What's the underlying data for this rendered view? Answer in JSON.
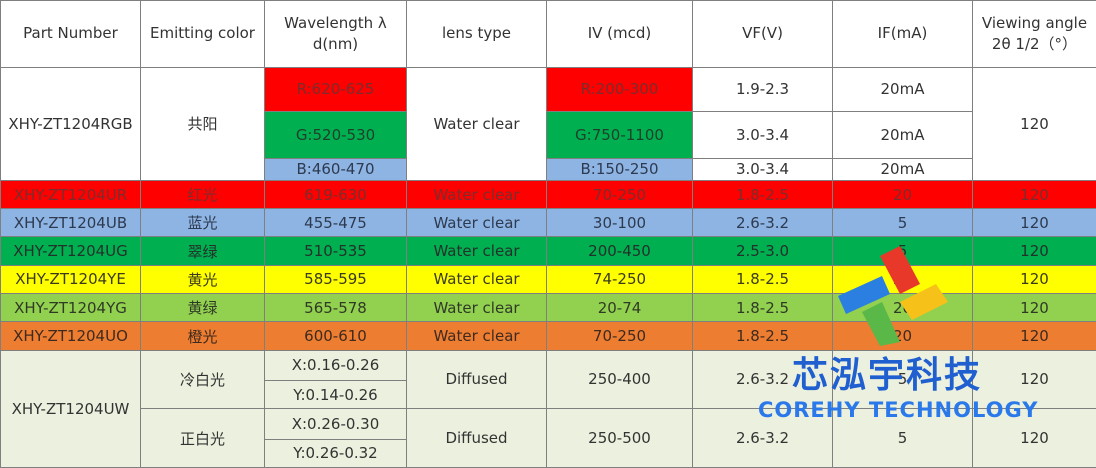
{
  "headers": {
    "part_number": "Part Number",
    "emitting_color": "Emitting color",
    "wavelength": "Wavelength λ d(nm)",
    "lens_type": "lens type",
    "iv": "IV (mcd)",
    "vf": "VF(V)",
    "if": "IF(mA)",
    "viewing_angle": "Viewing angle 2θ 1/2（°）"
  },
  "rgb": {
    "part": "XHY-ZT1204RGB",
    "color": "共阳",
    "lens": "Water clear",
    "angle": "120",
    "channels": [
      {
        "wavelength": "R:620-625",
        "iv": "R:200-300",
        "vf": "1.9-2.3",
        "if": "20mA"
      },
      {
        "wavelength": "G:520-530",
        "iv": "G:750-1100",
        "vf": "3.0-3.4",
        "if": "20mA"
      },
      {
        "wavelength": "B:460-470",
        "iv": "B:150-250",
        "vf": "3.0-3.4",
        "if": "20mA"
      }
    ]
  },
  "mono": [
    {
      "part": "XHY-ZT1204UR",
      "color": "红光",
      "wavelength": "619-630",
      "lens": "Water clear",
      "iv": "70-250",
      "vf": "1.8-2.5",
      "if": "20",
      "angle": "120"
    },
    {
      "part": "XHY-ZT1204UB",
      "color": "蓝光",
      "wavelength": "455-475",
      "lens": "Water clear",
      "iv": "30-100",
      "vf": "2.6-3.2",
      "if": "5",
      "angle": "120"
    },
    {
      "part": "XHY-ZT1204UG",
      "color": "翠绿",
      "wavelength": "510-535",
      "lens": "Water clear",
      "iv": "200-450",
      "vf": "2.5-3.0",
      "if": "5",
      "angle": "120"
    },
    {
      "part": "XHY-ZT1204YE",
      "color": "黄光",
      "wavelength": "585-595",
      "lens": "Water clear",
      "iv": "74-250",
      "vf": "1.8-2.5",
      "if": "20",
      "angle": "120"
    },
    {
      "part": "XHY-ZT1204YG",
      "color": "黄绿",
      "wavelength": "565-578",
      "lens": "Water clear",
      "iv": "20-74",
      "vf": "1.8-2.5",
      "if": "20",
      "angle": "120"
    },
    {
      "part": "XHY-ZT1204UO",
      "color": "橙光",
      "wavelength": "600-610",
      "lens": "Water clear",
      "iv": "70-250",
      "vf": "1.8-2.5",
      "if": "20",
      "angle": "120"
    }
  ],
  "uw": {
    "part": "XHY-ZT1204UW",
    "variants": [
      {
        "color": "冷白光",
        "x": "X:0.16-0.26",
        "y": "Y:0.14-0.26",
        "lens": "Diffused",
        "iv": "250-400",
        "vf": "2.6-3.2",
        "if": "5",
        "angle": "120"
      },
      {
        "color": "正白光",
        "x": "X:0.26-0.30",
        "y": "Y:0.26-0.32",
        "lens": "Diffused",
        "iv": "250-500",
        "vf": "2.6-3.2",
        "if": "5",
        "angle": "120"
      }
    ]
  },
  "watermark": {
    "brand_cn": "芯泓宇科技",
    "brand_en": "COREHY TECHNOLOGY"
  },
  "colors": {
    "red": "#ff0000",
    "green": "#00b050",
    "blue": "#8eb4e3",
    "yellow": "#ffff00",
    "yellow_green": "#92d050",
    "orange": "#ed7d31",
    "white_section": "#ebf1de"
  }
}
